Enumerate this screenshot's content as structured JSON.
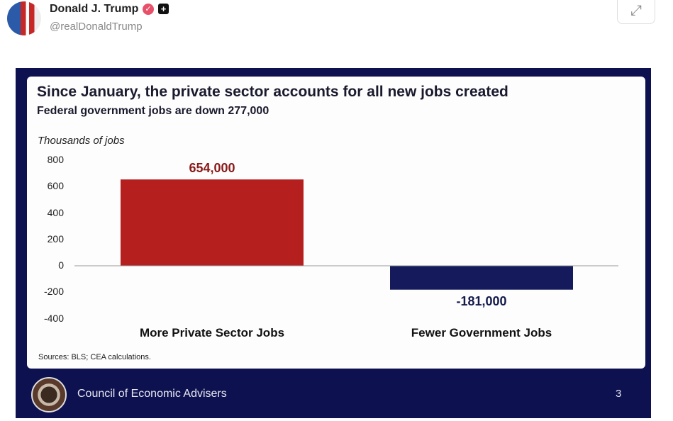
{
  "post": {
    "author": "Donald J. Trump",
    "handle": "@realDonaldTrump",
    "verified_icon": "verified-badge-icon",
    "plus_icon": "plus-badge-icon",
    "expand_icon": "expand-icon"
  },
  "slide": {
    "org": "Council of Economic Advisers",
    "page": "3",
    "sources": "Sources: BLS; CEA calculations."
  },
  "chart_data": {
    "type": "bar",
    "title": "Since January, the private sector accounts for all new jobs created",
    "subtitle": "Federal government jobs are down 277,000",
    "ylabel": "Thousands of jobs",
    "xlabel": "",
    "ylim": [
      -400,
      800
    ],
    "yticks": [
      "800",
      "600",
      "400",
      "200",
      "0",
      "-200",
      "-400"
    ],
    "categories": [
      "More Private Sector Jobs",
      "Fewer Government Jobs"
    ],
    "values": [
      654,
      -181
    ],
    "data_labels": [
      "654,000",
      "-181,000"
    ],
    "colors": [
      "#b5201e",
      "#141a5c"
    ],
    "grid": false
  }
}
